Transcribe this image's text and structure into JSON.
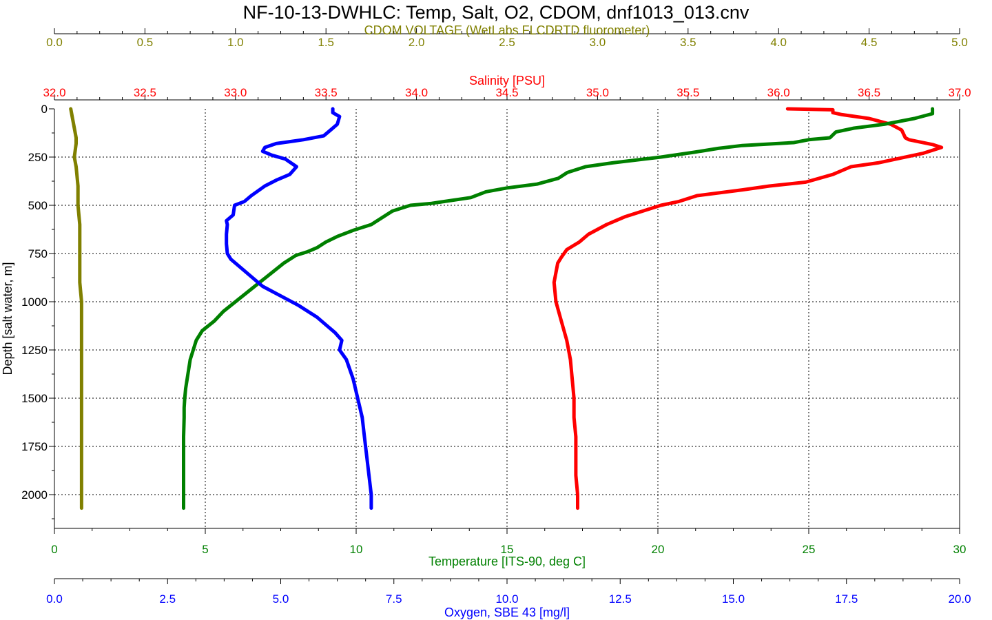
{
  "chart_data": {
    "type": "line",
    "title": "NF-10-13-DWHLC: Temp, Salt, O2, CDOM, dnf1013_013.cnv",
    "grid": true,
    "y_axis": {
      "label": "Depth [salt water, m]",
      "range": [
        0,
        2175
      ],
      "inverted": true,
      "ticks": [
        0,
        250,
        500,
        750,
        1000,
        1250,
        1500,
        1750,
        2000
      ]
    },
    "x_axes": [
      {
        "id": "cdom",
        "label": "CDOM VOLTAGE (WetLabs FLCDRTD fluorometer)",
        "position": "top",
        "color": "#808000",
        "range": [
          0.0,
          5.0
        ],
        "ticks": [
          "0.0",
          "0.5",
          "1.0",
          "1.5",
          "2.0",
          "2.5",
          "3.0",
          "3.5",
          "4.0",
          "4.5",
          "5.0"
        ]
      },
      {
        "id": "sal",
        "label": "Salinity [PSU]",
        "position": "top",
        "color": "#ff0000",
        "range": [
          32.0,
          37.0
        ],
        "ticks": [
          "32.0",
          "32.5",
          "33.0",
          "33.5",
          "34.0",
          "34.5",
          "35.0",
          "35.5",
          "36.0",
          "36.5",
          "37.0"
        ]
      },
      {
        "id": "temp",
        "label": "Temperature [ITS-90, deg C]",
        "position": "bottom",
        "color": "#008000",
        "range": [
          0,
          30
        ],
        "ticks": [
          "0",
          "5",
          "10",
          "15",
          "20",
          "25",
          "30"
        ]
      },
      {
        "id": "oxy",
        "label": "Oxygen, SBE 43 [mg/l]",
        "position": "bottom",
        "color": "#0000ff",
        "range": [
          0.0,
          20.0
        ],
        "ticks": [
          "0.0",
          "2.5",
          "5.0",
          "7.5",
          "10.0",
          "12.5",
          "15.0",
          "17.5",
          "20.0"
        ]
      }
    ],
    "series": [
      {
        "axis": "cdom",
        "color": "#808000",
        "points": [
          [
            0.09,
            0
          ],
          [
            0.1,
            50
          ],
          [
            0.11,
            100
          ],
          [
            0.12,
            150
          ],
          [
            0.12,
            180
          ],
          [
            0.11,
            250
          ],
          [
            0.12,
            300
          ],
          [
            0.13,
            400
          ],
          [
            0.13,
            500
          ],
          [
            0.14,
            600
          ],
          [
            0.14,
            700
          ],
          [
            0.14,
            800
          ],
          [
            0.14,
            900
          ],
          [
            0.15,
            1000
          ],
          [
            0.15,
            1100
          ],
          [
            0.15,
            1200
          ],
          [
            0.15,
            1300
          ],
          [
            0.15,
            1500
          ],
          [
            0.15,
            1700
          ],
          [
            0.15,
            1900
          ],
          [
            0.15,
            2070
          ]
        ]
      },
      {
        "axis": "sal",
        "color": "#ff0000",
        "points": [
          [
            36.05,
            0
          ],
          [
            36.3,
            5
          ],
          [
            36.3,
            20
          ],
          [
            36.35,
            30
          ],
          [
            36.5,
            50
          ],
          [
            36.62,
            80
          ],
          [
            36.68,
            110
          ],
          [
            36.7,
            150
          ],
          [
            36.72,
            160
          ],
          [
            36.85,
            185
          ],
          [
            36.9,
            200
          ],
          [
            36.8,
            230
          ],
          [
            36.65,
            260
          ],
          [
            36.55,
            280
          ],
          [
            36.4,
            300
          ],
          [
            36.3,
            340
          ],
          [
            36.15,
            380
          ],
          [
            35.95,
            400
          ],
          [
            35.8,
            420
          ],
          [
            35.55,
            450
          ],
          [
            35.45,
            480
          ],
          [
            35.35,
            500
          ],
          [
            35.25,
            530
          ],
          [
            35.15,
            560
          ],
          [
            35.05,
            600
          ],
          [
            34.95,
            650
          ],
          [
            34.9,
            690
          ],
          [
            34.83,
            730
          ],
          [
            34.8,
            770
          ],
          [
            34.78,
            800
          ],
          [
            34.76,
            900
          ],
          [
            34.77,
            1000
          ],
          [
            34.8,
            1100
          ],
          [
            34.83,
            1200
          ],
          [
            34.85,
            1300
          ],
          [
            34.86,
            1400
          ],
          [
            34.87,
            1500
          ],
          [
            34.87,
            1600
          ],
          [
            34.88,
            1700
          ],
          [
            34.88,
            1800
          ],
          [
            34.88,
            1900
          ],
          [
            34.89,
            2000
          ],
          [
            34.89,
            2070
          ]
        ]
      },
      {
        "axis": "temp",
        "color": "#008000",
        "points": [
          [
            29.1,
            0
          ],
          [
            29.1,
            25
          ],
          [
            28.5,
            50
          ],
          [
            27.5,
            80
          ],
          [
            26.5,
            100
          ],
          [
            25.9,
            120
          ],
          [
            25.7,
            150
          ],
          [
            25.0,
            160
          ],
          [
            24.5,
            175
          ],
          [
            22.8,
            190
          ],
          [
            22.0,
            205
          ],
          [
            21.2,
            225
          ],
          [
            20.1,
            250
          ],
          [
            18.5,
            280
          ],
          [
            17.6,
            300
          ],
          [
            17.0,
            330
          ],
          [
            16.7,
            360
          ],
          [
            16.0,
            390
          ],
          [
            15.0,
            410
          ],
          [
            14.3,
            430
          ],
          [
            13.8,
            460
          ],
          [
            12.5,
            490
          ],
          [
            11.8,
            500
          ],
          [
            11.2,
            530
          ],
          [
            10.8,
            570
          ],
          [
            10.5,
            600
          ],
          [
            9.9,
            630
          ],
          [
            9.4,
            660
          ],
          [
            9.0,
            690
          ],
          [
            8.7,
            720
          ],
          [
            8.4,
            740
          ],
          [
            8.0,
            760
          ],
          [
            7.6,
            800
          ],
          [
            7.2,
            850
          ],
          [
            6.8,
            900
          ],
          [
            6.4,
            950
          ],
          [
            6.0,
            1000
          ],
          [
            5.6,
            1050
          ],
          [
            5.3,
            1100
          ],
          [
            4.9,
            1150
          ],
          [
            4.7,
            1200
          ],
          [
            4.6,
            1250
          ],
          [
            4.5,
            1300
          ],
          [
            4.45,
            1350
          ],
          [
            4.4,
            1400
          ],
          [
            4.35,
            1450
          ],
          [
            4.32,
            1500
          ],
          [
            4.3,
            1550
          ],
          [
            4.3,
            1600
          ],
          [
            4.28,
            1700
          ],
          [
            4.28,
            1800
          ],
          [
            4.28,
            1900
          ],
          [
            4.28,
            2000
          ],
          [
            4.28,
            2070
          ]
        ]
      },
      {
        "axis": "oxy",
        "color": "#0000ff",
        "points": [
          [
            6.15,
            0
          ],
          [
            6.15,
            20
          ],
          [
            6.3,
            40
          ],
          [
            6.25,
            80
          ],
          [
            6.1,
            110
          ],
          [
            5.95,
            140
          ],
          [
            5.5,
            160
          ],
          [
            5.2,
            170
          ],
          [
            4.9,
            180
          ],
          [
            4.65,
            200
          ],
          [
            4.6,
            220
          ],
          [
            4.8,
            240
          ],
          [
            5.1,
            260
          ],
          [
            5.35,
            300
          ],
          [
            5.2,
            340
          ],
          [
            4.9,
            370
          ],
          [
            4.65,
            400
          ],
          [
            4.35,
            450
          ],
          [
            4.2,
            480
          ],
          [
            3.98,
            500
          ],
          [
            3.95,
            550
          ],
          [
            3.8,
            580
          ],
          [
            3.82,
            600
          ],
          [
            3.8,
            650
          ],
          [
            3.8,
            700
          ],
          [
            3.82,
            750
          ],
          [
            3.9,
            780
          ],
          [
            4.1,
            820
          ],
          [
            4.35,
            870
          ],
          [
            4.6,
            920
          ],
          [
            5.0,
            970
          ],
          [
            5.4,
            1020
          ],
          [
            5.8,
            1080
          ],
          [
            6.0,
            1120
          ],
          [
            6.2,
            1160
          ],
          [
            6.35,
            1200
          ],
          [
            6.3,
            1250
          ],
          [
            6.45,
            1300
          ],
          [
            6.6,
            1400
          ],
          [
            6.7,
            1500
          ],
          [
            6.8,
            1600
          ],
          [
            6.85,
            1700
          ],
          [
            6.9,
            1800
          ],
          [
            6.95,
            1900
          ],
          [
            7.0,
            2000
          ],
          [
            7.0,
            2070
          ]
        ]
      }
    ]
  }
}
